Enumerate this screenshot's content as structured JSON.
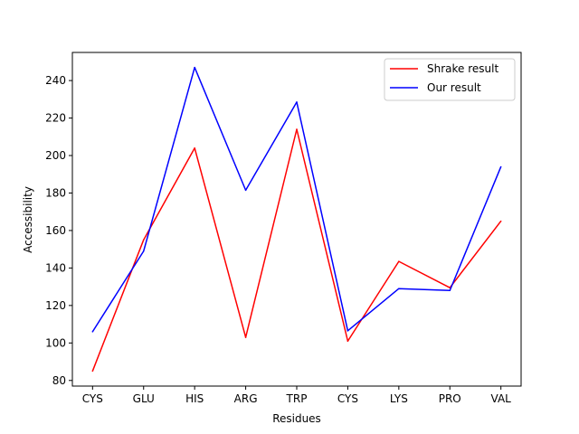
{
  "chart_data": {
    "type": "line",
    "title": "",
    "xlabel": "Residues",
    "ylabel": "Accessibility",
    "categories": [
      "CYS",
      "GLU",
      "HIS",
      "ARG",
      "TRP",
      "CYS",
      "LYS",
      "PRO",
      "VAL"
    ],
    "ylim": [
      77,
      255
    ],
    "yticks": [
      80,
      100,
      120,
      140,
      160,
      180,
      200,
      220,
      240
    ],
    "grid": false,
    "legend_position": "top-right",
    "series": [
      {
        "name": "Shrake result",
        "color": "#ff0000",
        "values": [
          85,
          155,
          204,
          103,
          214,
          101,
          143.5,
          129.5,
          165
        ]
      },
      {
        "name": "Our result",
        "color": "#0000ff",
        "values": [
          106,
          149,
          247,
          181.5,
          228.5,
          106.5,
          129,
          128,
          194
        ]
      }
    ]
  }
}
